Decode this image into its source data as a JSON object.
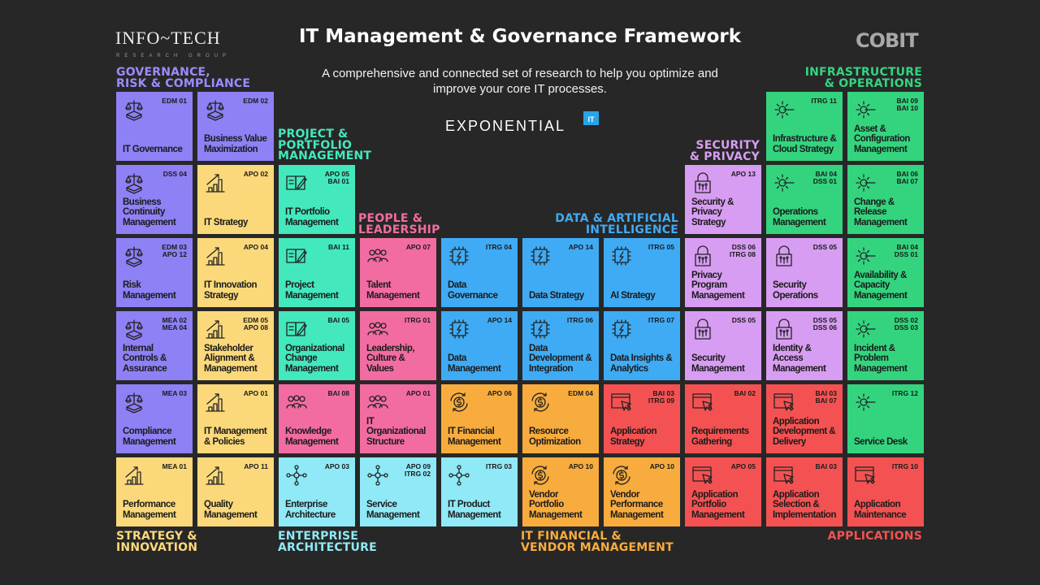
{
  "header": {
    "title": "IT Management & Governance Framework",
    "subtitle": "A comprehensive and connected set of research to help you optimize and improve your core IT processes.",
    "infotech_logo": "INFO~TECH",
    "infotech_sub": "RESEARCH GROUP",
    "exponential": "EXPONENTIAL",
    "exponential_badge": "IT",
    "cobit_logo": "COBIT"
  },
  "categories": {
    "gov": {
      "label": "GOVERNANCE,\nRISK & COMPLIANCE",
      "color": "#8e80f5",
      "label_color": "#9b8cff"
    },
    "strat": {
      "label": "STRATEGY &\nINNOVATION",
      "color": "#fbd97b",
      "label_color": "#fbd97b"
    },
    "proj": {
      "label": "PROJECT &\nPORTFOLIO\nMANAGEMENT",
      "color": "#43e8bd",
      "label_color": "#43e8bd"
    },
    "people": {
      "label": "PEOPLE &\nLEADERSHIP",
      "color": "#f26ca2",
      "label_color": "#f26ca2"
    },
    "data": {
      "label": "DATA & ARTIFICIAL\nINTELLIGENCE",
      "color": "#3fabf5",
      "label_color": "#3fabf5"
    },
    "sec": {
      "label": "SECURITY\n& PRIVACY",
      "color": "#d79df2",
      "label_color": "#d79df2"
    },
    "infra": {
      "label": "INFRASTRUCTURE\n& OPERATIONS",
      "color": "#34d47f",
      "label_color": "#34d47f"
    },
    "ea": {
      "label": "ENTERPRISE\nARCHITECTURE",
      "color": "#8fe9f7",
      "label_color": "#8fe9f7"
    },
    "fin": {
      "label": "IT FINANCIAL &\nVENDOR MANAGEMENT",
      "color": "#f8ac3e",
      "label_color": "#f8ac3e"
    },
    "app": {
      "label": "APPLICATIONS",
      "color": "#f45252",
      "label_color": "#f45252"
    }
  },
  "icons": {
    "gov": "scales-icon",
    "strat": "growth-chart-icon",
    "proj": "notebook-pen-icon",
    "people": "people-icon",
    "data": "chip-icon",
    "sec": "lock-icon",
    "infra": "gear-wrench-icon",
    "ea": "network-icon",
    "fin": "dollar-cycle-icon",
    "app": "window-cursor-icon"
  },
  "tiles": [
    {
      "name": "IT Governance",
      "code": "EDM 01",
      "cat": "gov"
    },
    {
      "name": "Business Value\nMaximization",
      "code": "EDM 02",
      "cat": "gov"
    },
    {
      "name": "Infrastructure &\nCloud Strategy",
      "code": "ITRG 11",
      "cat": "infra"
    },
    {
      "name": "Asset &\nConfiguration\nManagement",
      "code": "BAI 09\nBAI 10",
      "cat": "infra"
    },
    {
      "name": "Business\nContinuity\nManagement",
      "code": "DSS 04",
      "cat": "gov"
    },
    {
      "name": "IT Strategy",
      "code": "APO 02",
      "cat": "strat"
    },
    {
      "name": "IT Portfolio\nManagement",
      "code": "APO 05\nBAI 01",
      "cat": "proj"
    },
    {
      "name": "Security &\nPrivacy\nStrategy",
      "code": "APO 13",
      "cat": "sec"
    },
    {
      "name": "Operations\nManagement",
      "code": "BAI 04\nDSS 01",
      "cat": "infra"
    },
    {
      "name": "Change &\nRelease\nManagement",
      "code": "BAI 06\nBAI 07",
      "cat": "infra"
    },
    {
      "name": "Risk\nManagement",
      "code": "EDM 03\nAPO 12",
      "cat": "gov"
    },
    {
      "name": "IT Innovation\nStrategy",
      "code": "APO 04",
      "cat": "strat"
    },
    {
      "name": "Project\nManagement",
      "code": "BAI 11",
      "cat": "proj"
    },
    {
      "name": "Talent\nManagement",
      "code": "APO 07",
      "cat": "people"
    },
    {
      "name": "Data\nGovernance",
      "code": "ITRG 04",
      "cat": "data"
    },
    {
      "name": "Data Strategy",
      "code": "APO 14",
      "cat": "data"
    },
    {
      "name": "AI Strategy",
      "code": "ITRG 05",
      "cat": "data"
    },
    {
      "name": "Privacy\nProgram\nManagement",
      "code": "DSS 06\nITRG 08",
      "cat": "sec"
    },
    {
      "name": "Security\nOperations",
      "code": "DSS 05",
      "cat": "sec"
    },
    {
      "name": "Availability &\nCapacity\nManagement",
      "code": "BAI 04\nDSS 01",
      "cat": "infra"
    },
    {
      "name": "Internal\nControls &\nAssurance",
      "code": "MEA 02\nMEA 04",
      "cat": "gov"
    },
    {
      "name": "Stakeholder\nAlignment &\nManagement",
      "code": "EDM 05\nAPO 08",
      "cat": "strat"
    },
    {
      "name": "Organizational\nChange\nManagement",
      "code": "BAI 05",
      "cat": "proj"
    },
    {
      "name": "Leadership,\nCulture &\nValues",
      "code": "ITRG 01",
      "cat": "people"
    },
    {
      "name": "Data\nManagement",
      "code": "APO 14",
      "cat": "data"
    },
    {
      "name": "Data\nDevelopment &\nIntegration",
      "code": "ITRG 06",
      "cat": "data"
    },
    {
      "name": "Data Insights &\nAnalytics",
      "code": "ITRG 07",
      "cat": "data"
    },
    {
      "name": "Security\nManagement",
      "code": "DSS 05",
      "cat": "sec"
    },
    {
      "name": "Identity &\nAccess\nManagement",
      "code": "DSS 05\nDSS 06",
      "cat": "sec"
    },
    {
      "name": "Incident &\nProblem\nManagement",
      "code": "DSS 02\nDSS 03",
      "cat": "infra"
    },
    {
      "name": "Compliance\nManagement",
      "code": "MEA 03",
      "cat": "gov"
    },
    {
      "name": "IT Management\n& Policies",
      "code": "APO 01",
      "cat": "strat"
    },
    {
      "name": "Knowledge\nManagement",
      "code": "BAI 08",
      "cat": "people"
    },
    {
      "name": "IT\nOrganizational\nStructure",
      "code": "APO 01",
      "cat": "people"
    },
    {
      "name": "IT Financial\nManagement",
      "code": "APO 06",
      "cat": "fin"
    },
    {
      "name": "Resource\nOptimization",
      "code": "EDM 04",
      "cat": "fin"
    },
    {
      "name": "Application\nStrategy",
      "code": "BAI 03\nITRG 09",
      "cat": "app"
    },
    {
      "name": "Requirements\nGathering",
      "code": "BAI 02",
      "cat": "app"
    },
    {
      "name": "Application\nDevelopment &\nDelivery",
      "code": "BAI 03\nBAI 07",
      "cat": "app"
    },
    {
      "name": "Service Desk",
      "code": "ITRG 12",
      "cat": "infra"
    },
    {
      "name": "Performance\nManagement",
      "code": "MEA 01",
      "cat": "strat"
    },
    {
      "name": "Quality\nManagement",
      "code": "APO 11",
      "cat": "strat"
    },
    {
      "name": "Enterprise\nArchitecture",
      "code": "APO 03",
      "cat": "ea"
    },
    {
      "name": "Service\nManagement",
      "code": "APO 09\nITRG 02",
      "cat": "ea"
    },
    {
      "name": "IT Product\nManagement",
      "code": "ITRG 03",
      "cat": "ea"
    },
    {
      "name": "Vendor\nPortfolio\nManagement",
      "code": "APO 10",
      "cat": "fin"
    },
    {
      "name": "Vendor\nPerformance\nManagement",
      "code": "APO 10",
      "cat": "fin"
    },
    {
      "name": "Application\nPortfolio\nManagement",
      "code": "APO 05",
      "cat": "app"
    },
    {
      "name": "Application\nSelection &\nImplementation",
      "code": "BAI 03",
      "cat": "app"
    },
    {
      "name": "Application\nMaintenance",
      "code": "ITRG 10",
      "cat": "app"
    }
  ]
}
